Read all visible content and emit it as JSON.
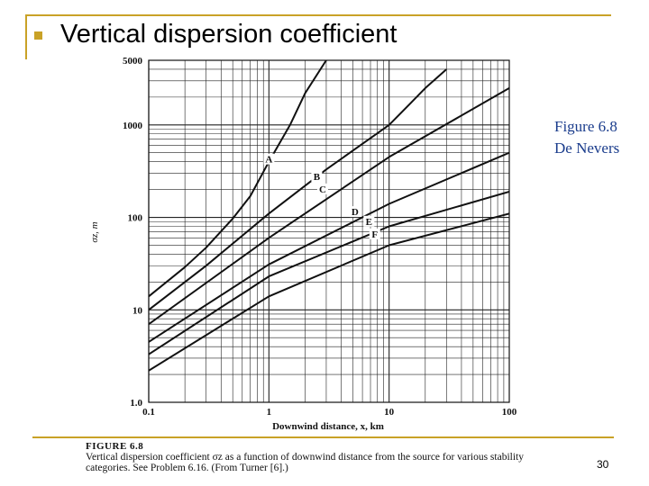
{
  "slide": {
    "title": "Vertical dispersion coefficient",
    "note_line1": "Figure 6.8",
    "note_line2": "De Nevers",
    "page_number": "30"
  },
  "caption": {
    "figure_label": "FIGURE 6.8",
    "text": "Vertical dispersion coefficient σz as a function of downwind distance from the source for various stability categories. See Problem 6.16. (From Turner [6].)"
  },
  "chart_data": {
    "type": "line",
    "xlabel": "Downwind distance, x, km",
    "ylabel": "σz, m",
    "x_scale": "log",
    "y_scale": "log",
    "xlim": [
      0.1,
      100
    ],
    "ylim": [
      1,
      5000
    ],
    "x_ticks": [
      {
        "value": 0.1,
        "label": "0.1"
      },
      {
        "value": 1,
        "label": "1"
      },
      {
        "value": 10,
        "label": "10"
      },
      {
        "value": 100,
        "label": "100"
      }
    ],
    "y_ticks": [
      {
        "value": 1,
        "label": "1.0"
      },
      {
        "value": 10,
        "label": "10"
      },
      {
        "value": 100,
        "label": "100"
      },
      {
        "value": 1000,
        "label": "1000"
      },
      {
        "value": 5000,
        "label": "5000"
      }
    ],
    "grid": true,
    "series": [
      {
        "name": "A",
        "x": [
          0.1,
          0.2,
          0.3,
          0.5,
          0.7,
          1.0,
          1.5,
          2.0,
          3.0
        ],
        "y": [
          14,
          29,
          47,
          97,
          170,
          400,
          1000,
          2200,
          5000
        ],
        "label_at": [
          1.0,
          400
        ]
      },
      {
        "name": "B",
        "x": [
          0.1,
          0.3,
          1.0,
          3.0,
          10,
          15,
          20,
          30
        ],
        "y": [
          10,
          30,
          110,
          330,
          1000,
          1700,
          2500,
          4000
        ],
        "label_at": [
          2.5,
          260
        ]
      },
      {
        "name": "C",
        "x": [
          0.1,
          1.0,
          10,
          100
        ],
        "y": [
          7,
          60,
          450,
          2500
        ],
        "label_at": [
          2.8,
          190
        ]
      },
      {
        "name": "D",
        "x": [
          0.1,
          1.0,
          10,
          100
        ],
        "y": [
          4.5,
          31,
          140,
          500
        ],
        "label_at": [
          5.2,
          108
        ]
      },
      {
        "name": "E",
        "x": [
          0.1,
          1.0,
          10,
          100
        ],
        "y": [
          3.3,
          23,
          80,
          190
        ],
        "label_at": [
          6.8,
          85
        ]
      },
      {
        "name": "F",
        "x": [
          0.1,
          1.0,
          10,
          100
        ],
        "y": [
          2.2,
          14,
          50,
          110
        ],
        "label_at": [
          7.6,
          62
        ]
      }
    ]
  },
  "colors": {
    "accent": "#c9a227",
    "note": "#1a3c8c",
    "line": "#111111"
  }
}
